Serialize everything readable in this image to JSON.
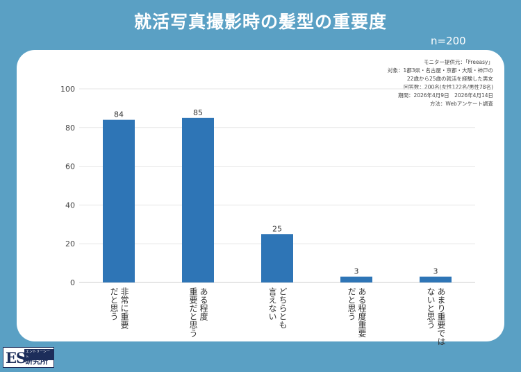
{
  "header": {
    "title": "就活写真撮影時の髪型の重要度",
    "sample": "n=200"
  },
  "survey_info": [
    "モニター提供元：「Freeasy」",
    "対象：1都3県・名古屋・京都・大阪・神戸の",
    "22歳から25歳の就活を経験した男女",
    "回答数：200名(女性122名/男性78名)",
    "期間：2026年4月9日　2026年4月14日",
    "方法：Webアンケート調査"
  ],
  "logo": {
    "mark": "ES",
    "tagline": "エントリーシート",
    "name": "研究所"
  },
  "chart_data": {
    "type": "bar",
    "categories": [
      "非常に重要\nだと思う",
      "ある程度\n重要だと思う",
      "どちらとも\n言えない",
      "ある程度重要\nだと思う",
      "あまり重要では\nないと思う"
    ],
    "values": [
      84,
      85,
      25,
      3,
      3
    ],
    "ylim": [
      0,
      100
    ],
    "yticks": [
      0,
      20,
      40,
      60,
      80,
      100
    ],
    "grid": true,
    "bar_color": "#2e75b6",
    "title": "",
    "xlabel": "",
    "ylabel": ""
  }
}
